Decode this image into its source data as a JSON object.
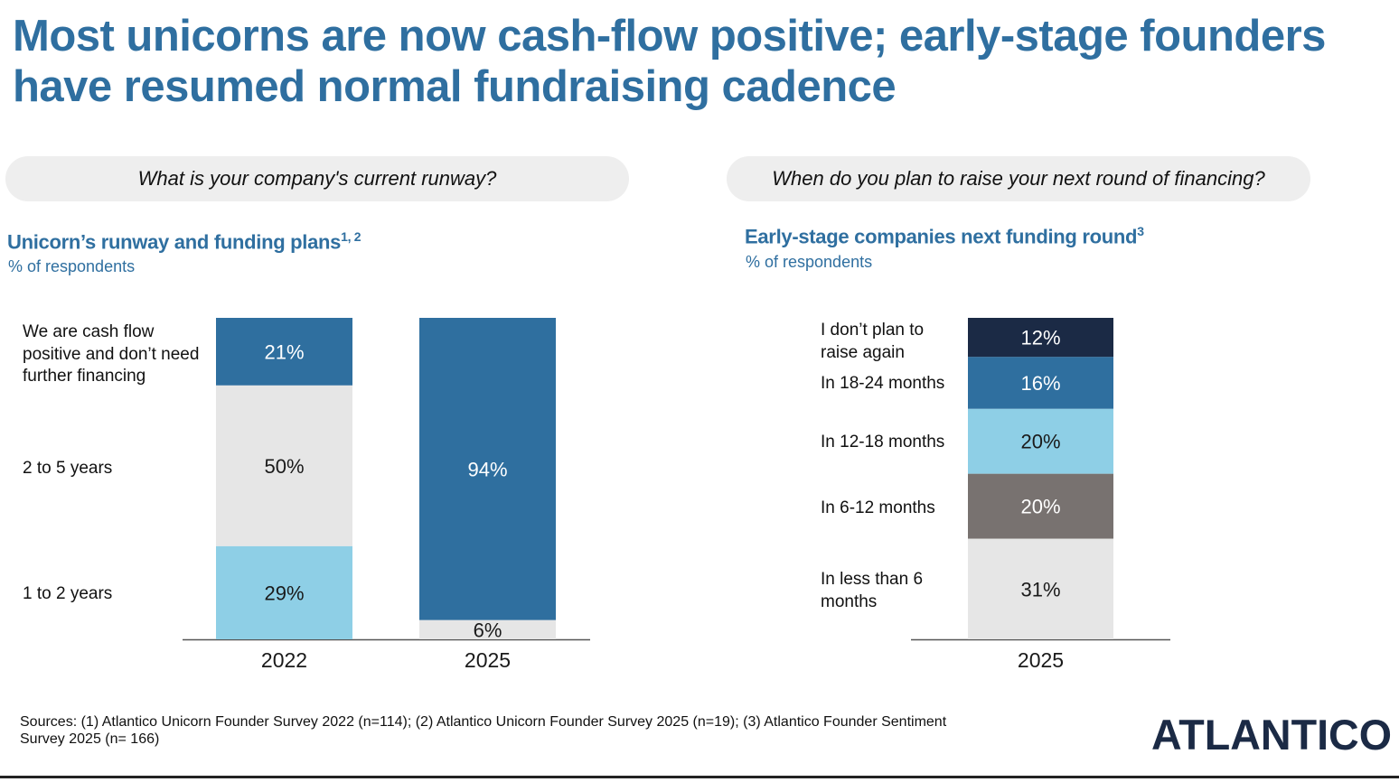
{
  "title": "Most unicorns are now cash-flow positive; early-stage founders have resumed normal fundraising cadence",
  "left": {
    "question": "What is your company's current runway?",
    "subtitle": "Unicorn’s runway and funding plans",
    "footnote": "1, 2",
    "unit": "% of respondents",
    "categories": [
      "We are cash flow positive and don’t need further financing",
      "2 to 5 years",
      "1 to 2 years"
    ]
  },
  "right": {
    "question": "When do you plan to raise your next round of financing?",
    "subtitle": "Early-stage companies next funding round",
    "footnote": "3",
    "unit": "% of respondents",
    "categories": [
      "I don’t plan to raise again",
      "In 18-24 months",
      "In 12-18 months",
      "In 6-12 months",
      "In less than 6 months"
    ]
  },
  "chart_data": [
    {
      "type": "bar",
      "stacked": true,
      "title": "Unicorn’s runway and funding plans",
      "ylabel": "% of respondents",
      "categories": [
        "2022",
        "2025"
      ],
      "series": [
        {
          "name": "1 to 2 years",
          "color": "#8ecfe6",
          "text_color": "#1a1a1a",
          "values": [
            29,
            0
          ]
        },
        {
          "name": "2 to 5 years",
          "color": "#e6e6e6",
          "text_color": "#1a1a1a",
          "values": [
            50,
            6
          ]
        },
        {
          "name": "We are cash flow positive and don’t need further financing",
          "color": "#2f6f9f",
          "text_color": "#ffffff",
          "values": [
            21,
            94
          ]
        }
      ],
      "labels": [
        [
          "29%",
          ""
        ],
        [
          "50%",
          "6%"
        ],
        [
          "21%",
          "94%"
        ]
      ],
      "ylim": [
        0,
        100
      ]
    },
    {
      "type": "bar",
      "stacked": true,
      "title": "Early-stage companies next funding round",
      "ylabel": "% of respondents",
      "categories": [
        "2025"
      ],
      "series": [
        {
          "name": "In less than 6 months",
          "color": "#e6e6e6",
          "text_color": "#1a1a1a",
          "values": [
            31
          ]
        },
        {
          "name": "In 6-12 months",
          "color": "#787270",
          "text_color": "#ffffff",
          "values": [
            20
          ]
        },
        {
          "name": "In 12-18 months",
          "color": "#8ecfe6",
          "text_color": "#1a1a1a",
          "values": [
            20
          ]
        },
        {
          "name": "In 18-24 months",
          "color": "#2f6f9f",
          "text_color": "#ffffff",
          "values": [
            16
          ]
        },
        {
          "name": "I don’t plan to raise again",
          "color": "#1b2a45",
          "text_color": "#ffffff",
          "values": [
            12
          ]
        }
      ],
      "labels": [
        [
          "31%"
        ],
        [
          "20%"
        ],
        [
          "20%"
        ],
        [
          "16%"
        ],
        [
          "12%"
        ]
      ],
      "ylim": [
        0,
        99
      ]
    }
  ],
  "sources": "Sources: (1) Atlantico Unicorn Founder Survey 2022 (n=114); (2) Atlantico Unicorn Founder Survey 2025 (n=19); (3) Atlantico Founder Sentiment Survey 2025 (n= 166)",
  "logo": "ATLANTICO",
  "colors": {
    "brand": "#2f6fa0",
    "navy": "#1b2a45"
  }
}
